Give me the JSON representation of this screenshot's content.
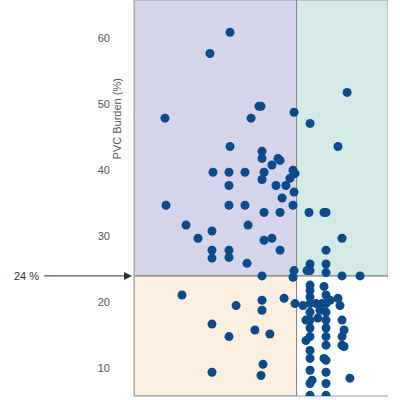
{
  "chart_data": {
    "type": "scatter",
    "ylabel": "PVC Burden (%)",
    "color": "#0b4a8b",
    "marker": "circle",
    "xlim": [
      0,
      100
    ],
    "ylim": [
      5.8,
      65.8
    ],
    "yticks": [
      10,
      20,
      30,
      40,
      50,
      60
    ],
    "tick_labels": "y",
    "reference_lines": [
      {
        "axis": "y",
        "value": 24,
        "label": "24 %"
      },
      {
        "axis": "x",
        "value": 64
      }
    ],
    "x": [
      12.2,
      12.6,
      29.9,
      37.8,
      31.1,
      37.4,
      37.4,
      37.4,
      37.8,
      43.7,
      43.7,
      44.9,
      46.1,
      49.2,
      50.0,
      50.4,
      50.4,
      51.2,
      50.4,
      51.2,
      51.2,
      54.3,
      54.3,
      55.9,
      56.7,
      57.5,
      57.5,
      58.3,
      57.5,
      59.8,
      61.4,
      62.6,
      62.6,
      63.0,
      20.5,
      25.2,
      30.7,
      30.7,
      30.7,
      37.4,
      37.4,
      44.5,
      50.4,
      63.0,
      63.4,
      69.3,
      80.3,
      83.9,
      74.8,
      68.9,
      75.6,
      81.9,
      75.6,
      75.6,
      69.3,
      69.3,
      75.6,
      81.9,
      89.0,
      63.0,
      62.6,
      18.9,
      30.7,
      30.7,
      37.4,
      40.2,
      47.6,
      50.4,
      50.4,
      50.8,
      50.0,
      59.1,
      63.4,
      53.5,
      68.1,
      69.3,
      69.3,
      69.3,
      69.3,
      69.3,
      69.3,
      69.3,
      69.3,
      69.3,
      69.3,
      69.3,
      69.3,
      69.3,
      67.7,
      67.7,
      66.5,
      74.8,
      75.6,
      75.6,
      75.6,
      75.6,
      75.6,
      75.6,
      75.6,
      75.6,
      75.6,
      75.6,
      75.6,
      74.0,
      73.2,
      80.3,
      81.1,
      81.9,
      81.9,
      81.9,
      82.7,
      82.7,
      85.0,
      74.8,
      71.7,
      72.4,
      70.1,
      77.2
    ],
    "values": [
      47.9,
      34.7,
      57.7,
      60.9,
      39.7,
      39.7,
      37.7,
      34.7,
      43.6,
      39.7,
      34.7,
      31.7,
      47.9,
      49.7,
      49.7,
      42.9,
      41.8,
      39.7,
      38.6,
      33.6,
      29.4,
      40.8,
      29.7,
      37.7,
      41.8,
      41.5,
      33.6,
      35.8,
      27.9,
      37.7,
      38.8,
      34.7,
      40.0,
      36.7,
      31.7,
      29.7,
      27.9,
      26.7,
      30.8,
      27.9,
      26.8,
      25.9,
      24.0,
      48.8,
      39.5,
      47.1,
      43.6,
      51.8,
      33.6,
      33.6,
      33.6,
      29.7,
      27.9,
      25.8,
      25.8,
      24.8,
      24.5,
      24.0,
      24.0,
      24.8,
      23.8,
      21.1,
      16.7,
      9.4,
      14.8,
      19.5,
      15.8,
      20.3,
      18.8,
      10.6,
      8.9,
      20.6,
      19.8,
      15.2,
      24.8,
      22.6,
      21.8,
      20.8,
      19.8,
      18.5,
      17.3,
      16.1,
      14.8,
      12.7,
      11.5,
      9.7,
      7.7,
      5.9,
      17.3,
      14.2,
      19.5,
      22.4,
      21.1,
      19.8,
      18.5,
      17.3,
      16.1,
      14.8,
      13.5,
      11.2,
      9.4,
      7.7,
      5.9,
      19.8,
      18.8,
      20.6,
      19.5,
      17.3,
      14.8,
      13.5,
      15.8,
      13.3,
      8.5,
      11.5,
      19.8,
      17.6,
      8.2,
      20.3
    ]
  }
}
